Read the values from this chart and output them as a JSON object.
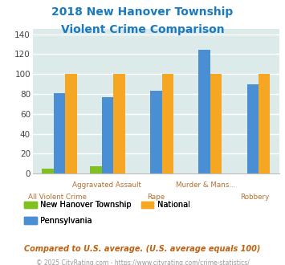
{
  "title_line1": "2018 New Hanover Township",
  "title_line2": "Violent Crime Comparison",
  "title_color": "#1a7abf",
  "categories": [
    "All Violent Crime",
    "Aggravated Assault",
    "Rape",
    "Murder & Mans...",
    "Robbery"
  ],
  "category_label_color": "#b07030",
  "series_order": [
    "New Hanover Township",
    "Pennsylvania",
    "National"
  ],
  "series": {
    "New Hanover Township": {
      "values": [
        5,
        7,
        0,
        0,
        0
      ],
      "color": "#80c020"
    },
    "Pennsylvania": {
      "values": [
        81,
        77,
        83,
        124,
        90
      ],
      "color": "#4a8fd4"
    },
    "National": {
      "values": [
        100,
        100,
        100,
        100,
        100
      ],
      "color": "#f5a623"
    }
  },
  "ylim": [
    0,
    145
  ],
  "yticks": [
    0,
    20,
    40,
    60,
    80,
    100,
    120,
    140
  ],
  "plot_area_color": "#ddeaea",
  "fig_background": "#ffffff",
  "grid_color": "#ffffff",
  "footnote1": "Compared to U.S. average. (U.S. average equals 100)",
  "footnote2": "© 2025 CityRating.com - https://www.cityrating.com/crime-statistics/",
  "footnote1_color": "#c06010",
  "footnote2_color": "#999999",
  "legend_colors": {
    "New Hanover Township": "#80c020",
    "National": "#f5a623",
    "Pennsylvania": "#4a8fd4"
  }
}
